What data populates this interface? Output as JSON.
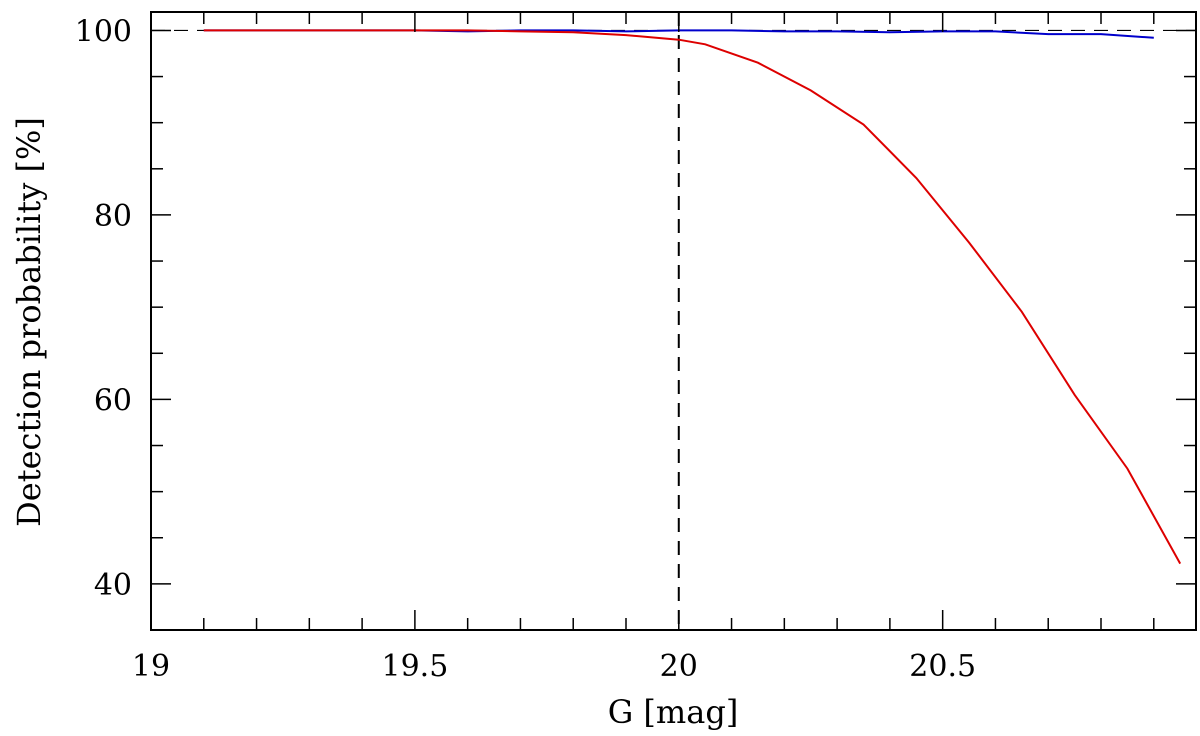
{
  "chart_data": {
    "type": "line",
    "title": "",
    "xlabel": "G [mag]",
    "ylabel": "Detection probability [%]",
    "xlim": [
      19.0,
      20.98
    ],
    "ylim": [
      35,
      102
    ],
    "grid": false,
    "legend": "none",
    "x_ticks": [
      19,
      19.5,
      20,
      20.5
    ],
    "x_tick_labels": [
      "19",
      "19.5",
      "20",
      "20.5"
    ],
    "y_ticks": [
      40,
      60,
      80,
      100
    ],
    "y_tick_labels": [
      "40",
      "60",
      "80",
      "100"
    ],
    "reference_lines": {
      "vertical_dashed_x": 20.0,
      "horizontal_dashed_y": 100
    },
    "series": [
      {
        "color": "#0000cc",
        "x": [
          19.1,
          19.2,
          19.3,
          19.4,
          19.5,
          19.6,
          19.7,
          19.8,
          19.9,
          20.0,
          20.1,
          20.2,
          20.3,
          20.4,
          20.5,
          20.6,
          20.7,
          20.8,
          20.9
        ],
        "values": [
          100,
          100,
          100,
          100,
          100,
          99.9,
          100,
          100,
          99.9,
          100,
          100,
          99.9,
          99.9,
          99.8,
          99.9,
          99.9,
          99.6,
          99.6,
          99.2
        ]
      },
      {
        "color": "#dd0000",
        "x": [
          19.1,
          19.2,
          19.3,
          19.4,
          19.5,
          19.6,
          19.7,
          19.8,
          19.9,
          20.0,
          20.05,
          20.15,
          20.25,
          20.35,
          20.45,
          20.55,
          20.65,
          20.75,
          20.85,
          20.95
        ],
        "values": [
          100,
          100,
          100,
          100,
          100,
          100,
          99.9,
          99.8,
          99.5,
          99.0,
          98.5,
          96.5,
          93.5,
          89.8,
          84.0,
          77.0,
          69.5,
          60.5,
          52.5,
          42.2
        ]
      }
    ]
  }
}
